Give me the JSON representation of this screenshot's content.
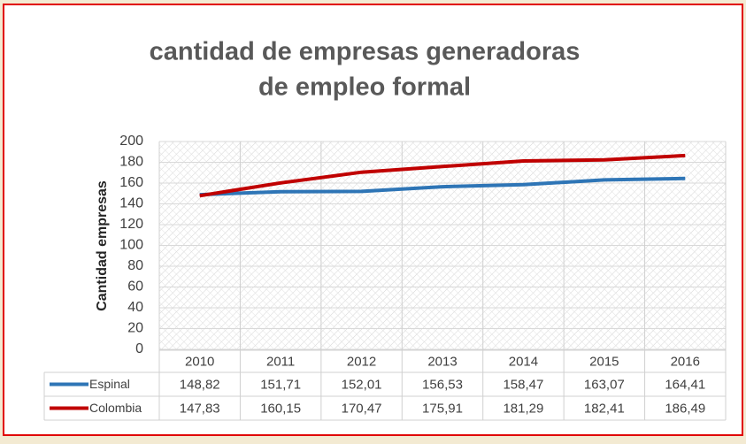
{
  "chart_data": {
    "type": "line",
    "title": "cantidad de empresas generadoras de empleo formal",
    "y_label": "Cantidad empresas",
    "categories": [
      "2010",
      "2011",
      "2012",
      "2013",
      "2014",
      "2015",
      "2016"
    ],
    "series": [
      {
        "name": "Espinal",
        "color": "#2e75b6",
        "values": [
          148.82,
          151.71,
          152.01,
          156.53,
          158.47,
          163.07,
          164.41
        ],
        "value_labels": [
          "148,82",
          "151,71",
          "152,01",
          "156,53",
          "158,47",
          "163,07",
          "164,41"
        ]
      },
      {
        "name": "Colombia",
        "color": "#c00000",
        "values": [
          147.83,
          160.15,
          170.47,
          175.91,
          181.29,
          182.41,
          186.49
        ],
        "value_labels": [
          "147,83",
          "160,15",
          "170,47",
          "175,91",
          "181,29",
          "182,41",
          "186,49"
        ]
      }
    ],
    "ylim": [
      0,
      200
    ],
    "yticks": [
      0,
      20,
      40,
      60,
      80,
      100,
      120,
      140,
      160,
      180,
      200
    ],
    "grid": true
  }
}
